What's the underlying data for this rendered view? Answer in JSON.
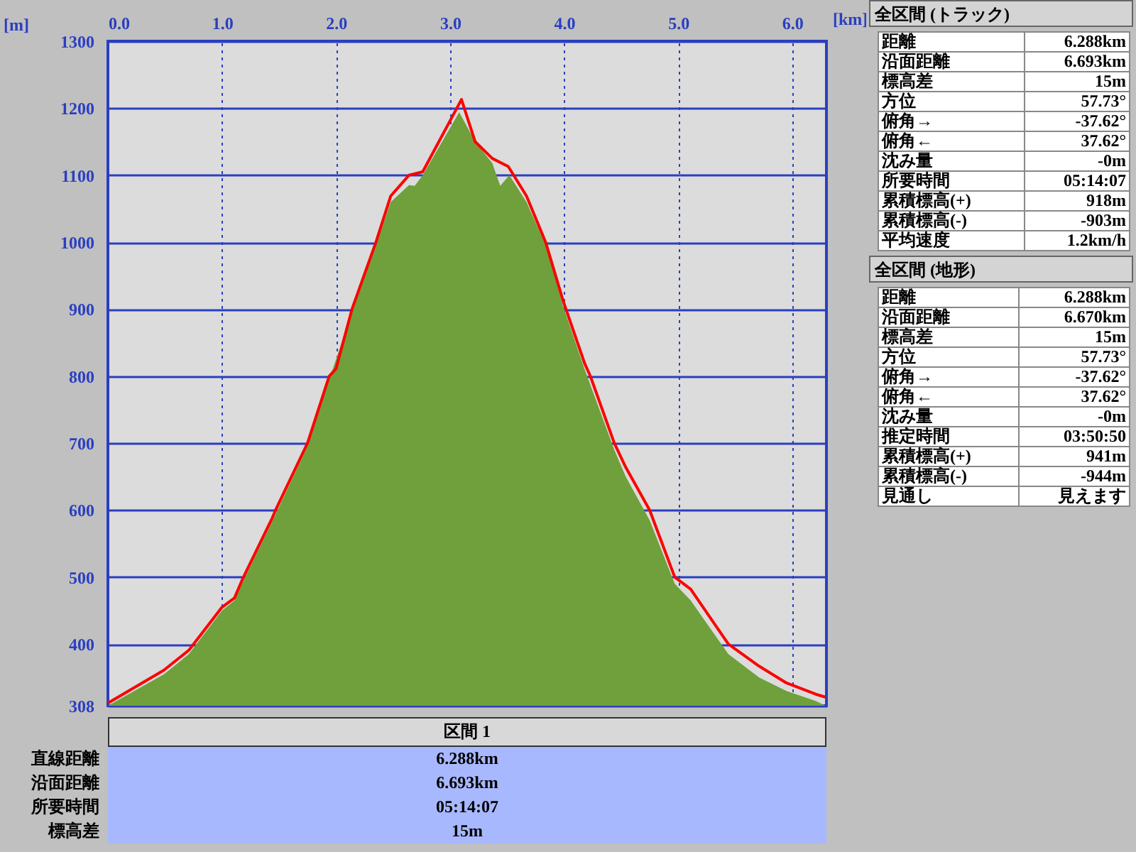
{
  "chart_data": [
    {
      "type": "line",
      "xlabel": "[km]",
      "ylabel": "[m]",
      "xlim": [
        0,
        6.3
      ],
      "ylim": [
        308,
        1300
      ],
      "xticks": [
        {
          "value": 0,
          "label": "0.0"
        },
        {
          "value": 1,
          "label": "1.0"
        },
        {
          "value": 2,
          "label": "2.0"
        },
        {
          "value": 3,
          "label": "3.0"
        },
        {
          "value": 4,
          "label": "4.0"
        },
        {
          "value": 5,
          "label": "5.0"
        },
        {
          "value": 6,
          "label": "6.0"
        }
      ],
      "yticks": [
        308,
        400,
        500,
        600,
        700,
        800,
        900,
        1000,
        1100,
        1200,
        1300
      ],
      "grid": true,
      "series": [
        {
          "type": "area",
          "color": "#6fa03c",
          "x": [
            0,
            0.49,
            0.71,
            1.0,
            1.11,
            1.18,
            1.44,
            1.75,
            1.94,
            2.14,
            2.35,
            2.48,
            2.64,
            2.69,
            2.76,
            3.08,
            3.22,
            3.37,
            3.44,
            3.52,
            3.67,
            3.84,
            3.99,
            4.18,
            4.44,
            4.54,
            4.75,
            4.97,
            5.11,
            5.44,
            5.71,
            5.95,
            6.21,
            6.29
          ],
          "values": [
            308,
            355,
            385,
            450,
            465,
            492,
            583,
            695,
            795,
            895,
            995,
            1060,
            1085,
            1084,
            1100,
            1194,
            1150,
            1118,
            1084,
            1100,
            1060,
            995,
            905,
            810,
            690,
            650,
            585,
            490,
            465,
            385,
            350,
            330,
            315,
            308
          ]
        },
        {
          "type": "line",
          "color": "#ff0000",
          "x": [
            0,
            0.49,
            0.71,
            1.0,
            1.11,
            1.18,
            1.44,
            1.47,
            1.75,
            1.94,
            2.0,
            2.14,
            2.35,
            2.48,
            2.64,
            2.76,
            3.1,
            3.22,
            3.37,
            3.51,
            3.67,
            3.84,
            3.99,
            4.18,
            4.23,
            4.44,
            4.54,
            4.75,
            4.97,
            5.11,
            5.44,
            5.71,
            5.95,
            6.21,
            6.29
          ],
          "values": [
            312,
            361,
            391,
            455,
            469,
            497,
            588,
            600,
            700,
            800,
            811,
            900,
            1000,
            1069,
            1100,
            1105,
            1213,
            1150,
            1125,
            1113,
            1069,
            999,
            913,
            819,
            800,
            700,
            664,
            600,
            500,
            482,
            400,
            367,
            342,
            325,
            321
          ]
        }
      ]
    },
    {
      "type": "other",
      "title": "全区間 (トラック)",
      "annotations": [
        "距離",
        "6.288km",
        "沿面距離",
        "6.693km",
        "標高差",
        "15m",
        "方位",
        "57.73°",
        "俯角→",
        "-37.62°",
        "俯角←",
        "37.62°",
        "沈み量",
        "-0m",
        "所要時間",
        "05:14:07",
        "累積標高(+)",
        "918m",
        "累積標高(-)",
        "-903m",
        "平均速度",
        "1.2km/h"
      ]
    },
    {
      "type": "other",
      "title": "全区間 (地形)",
      "annotations": [
        "距離",
        "6.288km",
        "沿面距離",
        "6.670km",
        "標高差",
        "15m",
        "方位",
        "57.73°",
        "俯角→",
        "-37.62°",
        "俯角←",
        "37.62°",
        "沈み量",
        "-0m",
        "推定時間",
        "03:50:50",
        "累積標高(+)",
        "941m",
        "累積標高(-)",
        "-944m",
        "見通し",
        "見えます"
      ]
    },
    {
      "type": "other",
      "title": "区間 1",
      "annotations": [
        "直線距離",
        "6.288km",
        "沿面距離",
        "6.693km",
        "所要時間",
        "05:14:07",
        "標高差",
        "15m"
      ]
    }
  ]
}
